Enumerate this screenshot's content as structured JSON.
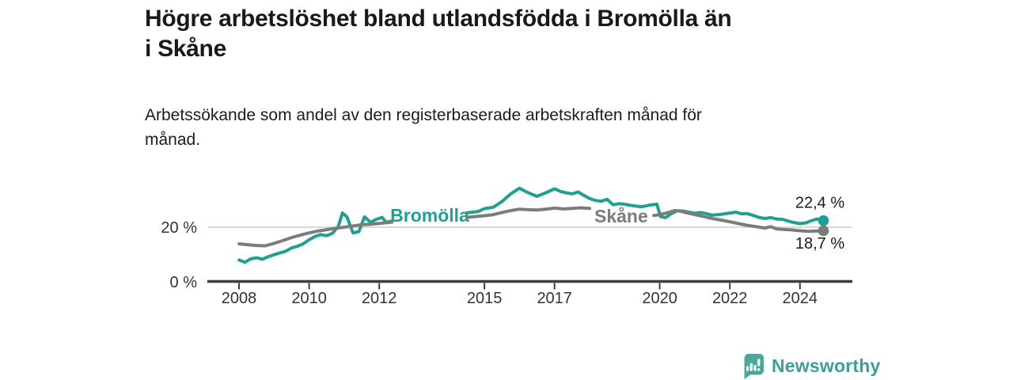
{
  "header": {
    "title_lines": [
      "Högre arbetslöshet bland utlandsfödda i Bromölla än",
      "i Skåne"
    ],
    "subtitle_lines": [
      "Arbetssökande som andel av den registerbaserade arbetskraften månad för",
      "månad."
    ]
  },
  "branding": {
    "name": "Newsworthy",
    "icon": "bar-chart-speech-bubble-icon",
    "icon_color": "#4aa79b",
    "text_color": "#3b9f95"
  },
  "colors": {
    "background": "#ffffff",
    "title_text": "#191919",
    "axis": "#3d3d3d",
    "grid": "#d9d9d9",
    "tick_text": "#333333",
    "value_text": "#1a1a1a",
    "bromolla_teal": "#20a090",
    "skane_gray": "#7c7c7c"
  },
  "chart_data": {
    "type": "line",
    "title": "Högre arbetslöshet bland utlandsfödda i Bromölla än i Skåne",
    "subtitle": "Arbetssökande som andel av den registerbaserade arbetskraften månad för månad.",
    "unit": "%",
    "x_axis": {
      "ticks": [
        2008,
        2010,
        2012,
        2015,
        2017,
        2020,
        2022,
        2024
      ],
      "range": [
        2007.1,
        2025.5
      ],
      "grid": false
    },
    "y_axis": {
      "ticks": [
        {
          "value": 0,
          "label": "0 %"
        },
        {
          "value": 20,
          "label": "20 %"
        }
      ],
      "range": [
        0,
        36
      ],
      "grid": true
    },
    "legend_position": "inline-labels",
    "series": [
      {
        "id": "bromolla",
        "name": "Bromölla",
        "color": "#20a090",
        "end_label": "22,4 %",
        "end_value": 22.4,
        "end_label_placement": "above",
        "label_pos": [
          2013.44,
          24.3
        ],
        "gaps": [
          [
            2012.36,
            2014.47
          ]
        ],
        "points": [
          [
            2008,
            8.0
          ],
          [
            2008.17,
            7.2
          ],
          [
            2008.33,
            8.4
          ],
          [
            2008.5,
            8.8
          ],
          [
            2008.67,
            8.3
          ],
          [
            2008.83,
            9.2
          ],
          [
            2009,
            9.9
          ],
          [
            2009.17,
            10.6
          ],
          [
            2009.33,
            11.2
          ],
          [
            2009.5,
            12.4
          ],
          [
            2009.67,
            13.0
          ],
          [
            2009.83,
            13.9
          ],
          [
            2010,
            15.4
          ],
          [
            2010.17,
            16.6
          ],
          [
            2010.33,
            17.3
          ],
          [
            2010.5,
            16.9
          ],
          [
            2010.67,
            17.8
          ],
          [
            2010.83,
            20.3
          ],
          [
            2010.95,
            25.2
          ],
          [
            2011.08,
            23.8
          ],
          [
            2011.25,
            17.9
          ],
          [
            2011.42,
            18.4
          ],
          [
            2011.58,
            23.8
          ],
          [
            2011.75,
            21.8
          ],
          [
            2011.92,
            22.9
          ],
          [
            2012.08,
            23.6
          ],
          [
            2012.2,
            21.8
          ],
          [
            2012.33,
            22.2
          ],
          [
            2014.5,
            25.3
          ],
          [
            2014.67,
            25.5
          ],
          [
            2014.83,
            25.8
          ],
          [
            2015,
            26.8
          ],
          [
            2015.25,
            27.3
          ],
          [
            2015.5,
            29.4
          ],
          [
            2015.75,
            32.2
          ],
          [
            2016,
            34.3
          ],
          [
            2016.17,
            33.1
          ],
          [
            2016.33,
            32.2
          ],
          [
            2016.5,
            31.3
          ],
          [
            2016.75,
            32.6
          ],
          [
            2017,
            34.1
          ],
          [
            2017.17,
            33.1
          ],
          [
            2017.33,
            32.6
          ],
          [
            2017.5,
            32.2
          ],
          [
            2017.67,
            32.9
          ],
          [
            2017.83,
            31.7
          ],
          [
            2018,
            30.5
          ],
          [
            2018.17,
            29.8
          ],
          [
            2018.33,
            29.5
          ],
          [
            2018.5,
            30.2
          ],
          [
            2018.67,
            28.2
          ],
          [
            2018.83,
            28.6
          ],
          [
            2019,
            28.4
          ],
          [
            2019.17,
            28.0
          ],
          [
            2019.33,
            27.7
          ],
          [
            2019.5,
            27.5
          ],
          [
            2019.75,
            28.2
          ],
          [
            2019.92,
            28.4
          ],
          [
            2020.02,
            23.9
          ],
          [
            2020.17,
            23.5
          ],
          [
            2020.33,
            25.0
          ],
          [
            2020.5,
            26.0
          ],
          [
            2020.67,
            25.9
          ],
          [
            2020.83,
            25.5
          ],
          [
            2021,
            25.1
          ],
          [
            2021.17,
            25.4
          ],
          [
            2021.33,
            25.0
          ],
          [
            2021.5,
            24.4
          ],
          [
            2021.75,
            24.7
          ],
          [
            2022,
            25.2
          ],
          [
            2022.17,
            25.5
          ],
          [
            2022.33,
            24.9
          ],
          [
            2022.5,
            25.0
          ],
          [
            2022.67,
            24.3
          ],
          [
            2022.83,
            23.6
          ],
          [
            2023,
            23.2
          ],
          [
            2023.17,
            23.5
          ],
          [
            2023.33,
            23.0
          ],
          [
            2023.5,
            22.9
          ],
          [
            2023.75,
            21.9
          ],
          [
            2024,
            21.3
          ],
          [
            2024.17,
            21.6
          ],
          [
            2024.33,
            22.4
          ],
          [
            2024.5,
            23.0
          ],
          [
            2024.67,
            22.4
          ]
        ]
      },
      {
        "id": "skane",
        "name": "Skåne",
        "color": "#7c7c7c",
        "end_label": "18,7 %",
        "end_value": 18.7,
        "end_label_placement": "below",
        "label_pos": [
          2018.9,
          24.1
        ],
        "gaps": [
          [
            2012.38,
            2014.47
          ],
          [
            2018.03,
            2019.8
          ]
        ],
        "points": [
          [
            2008,
            13.9
          ],
          [
            2008.25,
            13.6
          ],
          [
            2008.5,
            13.3
          ],
          [
            2008.75,
            13.2
          ],
          [
            2009,
            14.1
          ],
          [
            2009.25,
            15.1
          ],
          [
            2009.5,
            16.2
          ],
          [
            2009.75,
            17.1
          ],
          [
            2010,
            17.9
          ],
          [
            2010.25,
            18.6
          ],
          [
            2010.5,
            19.1
          ],
          [
            2010.75,
            19.6
          ],
          [
            2011,
            20.0
          ],
          [
            2011.25,
            20.5
          ],
          [
            2011.5,
            20.9
          ],
          [
            2011.75,
            21.1
          ],
          [
            2012,
            21.4
          ],
          [
            2012.25,
            21.7
          ],
          [
            2012.36,
            21.8
          ],
          [
            2014.5,
            23.6
          ],
          [
            2014.75,
            23.9
          ],
          [
            2015,
            24.2
          ],
          [
            2015.25,
            24.6
          ],
          [
            2015.5,
            25.4
          ],
          [
            2015.75,
            26.1
          ],
          [
            2016,
            26.6
          ],
          [
            2016.25,
            26.4
          ],
          [
            2016.5,
            26.3
          ],
          [
            2016.75,
            26.6
          ],
          [
            2017,
            27.0
          ],
          [
            2017.25,
            26.7
          ],
          [
            2017.5,
            26.9
          ],
          [
            2017.75,
            27.1
          ],
          [
            2018,
            26.9
          ],
          [
            2019.83,
            24.3
          ],
          [
            2020,
            24.6
          ],
          [
            2020.25,
            25.4
          ],
          [
            2020.42,
            26.1
          ],
          [
            2020.58,
            25.9
          ],
          [
            2020.75,
            25.3
          ],
          [
            2021,
            24.6
          ],
          [
            2021.25,
            23.9
          ],
          [
            2021.5,
            23.2
          ],
          [
            2021.75,
            22.6
          ],
          [
            2022,
            22.0
          ],
          [
            2022.25,
            21.3
          ],
          [
            2022.5,
            20.7
          ],
          [
            2022.75,
            20.2
          ],
          [
            2023,
            19.7
          ],
          [
            2023.17,
            20.2
          ],
          [
            2023.33,
            19.4
          ],
          [
            2023.5,
            19.2
          ],
          [
            2023.75,
            19.0
          ],
          [
            2024,
            18.7
          ],
          [
            2024.25,
            18.5
          ],
          [
            2024.5,
            18.6
          ],
          [
            2024.67,
            18.7
          ]
        ]
      }
    ]
  }
}
